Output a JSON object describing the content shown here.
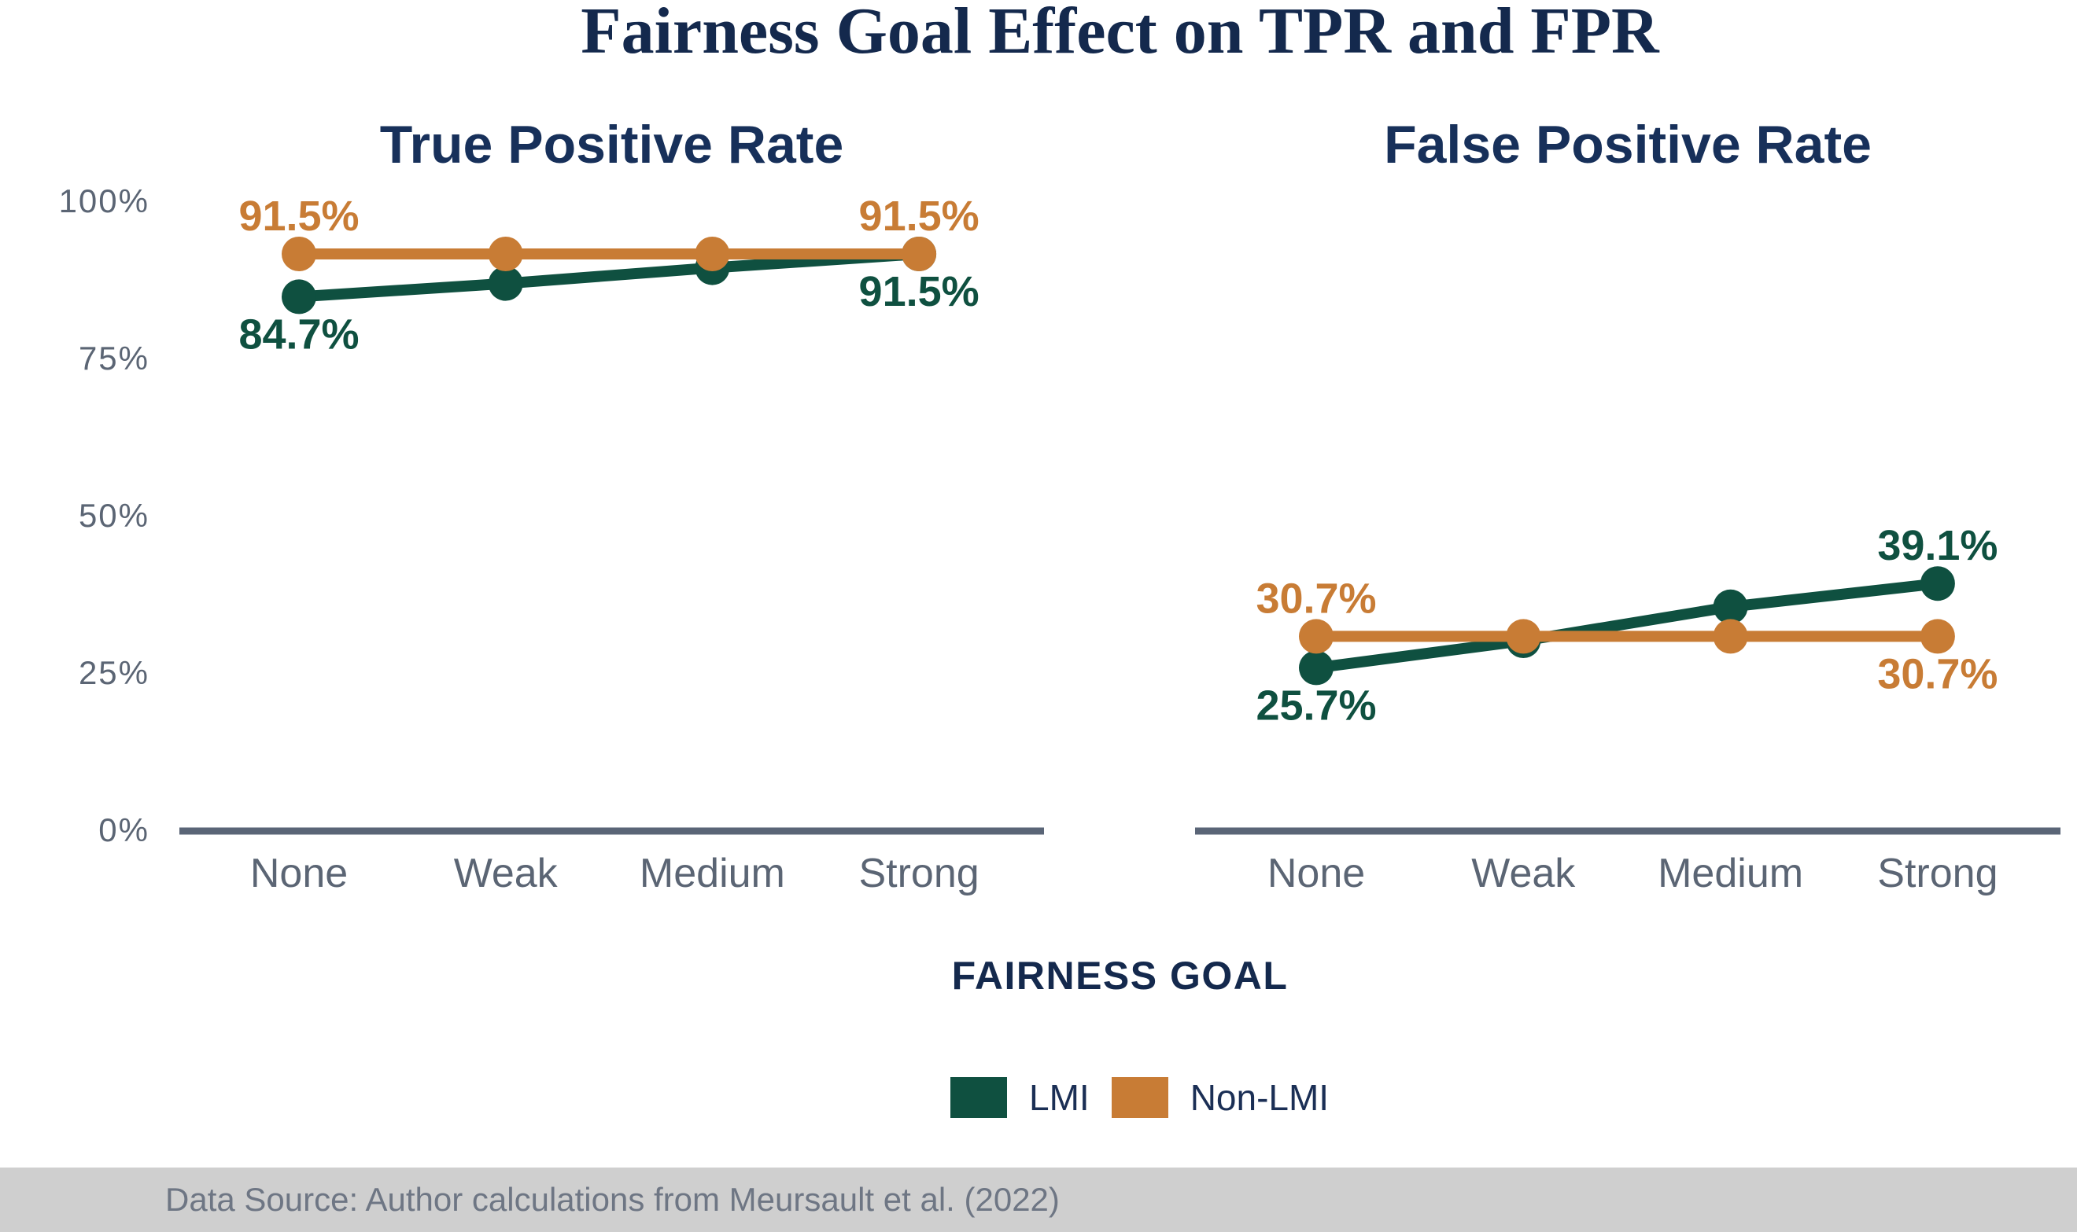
{
  "title": "Fairness Goal Effect on TPR and FPR",
  "x_axis_label": "FAIRNESS GOAL",
  "footer": {
    "text": "Data Source: Author calculations from Meursault et al. (2022)"
  },
  "legend": {
    "items": [
      {
        "label": "LMI",
        "color": "#0f5040"
      },
      {
        "label": "Non-LMI",
        "color": "#c87c35"
      }
    ]
  },
  "colors": {
    "navy": "#14294d",
    "slate_tick": "#5b6574",
    "axis_line": "#5a6577",
    "green": "#0f5040",
    "orange": "#c87c35"
  },
  "chart_data": [
    {
      "type": "line",
      "title": "True Positive Rate",
      "categories": [
        "None",
        "Weak",
        "Medium",
        "Strong"
      ],
      "ylim": [
        0,
        100
      ],
      "yticks": [
        "0%",
        "25%",
        "50%",
        "75%",
        "100%"
      ],
      "grid": false,
      "legend_position": "bottom",
      "series": [
        {
          "name": "LMI",
          "color": "#0f5040",
          "values": [
            84.7,
            86.8,
            89.3,
            91.5
          ],
          "point_labels": [
            {
              "index": 0,
              "text": "84.7%",
              "position": "below"
            },
            {
              "index": 3,
              "text": "91.5%",
              "position": "below"
            }
          ]
        },
        {
          "name": "Non-LMI",
          "color": "#c87c35",
          "values": [
            91.5,
            91.5,
            91.5,
            91.5
          ],
          "point_labels": [
            {
              "index": 0,
              "text": "91.5%",
              "position": "above"
            },
            {
              "index": 3,
              "text": "91.5%",
              "position": "above"
            }
          ]
        }
      ]
    },
    {
      "type": "line",
      "title": "False Positive Rate",
      "categories": [
        "None",
        "Weak",
        "Medium",
        "Strong"
      ],
      "ylim": [
        0,
        100
      ],
      "yticks": [],
      "grid": false,
      "legend_position": "bottom",
      "series": [
        {
          "name": "LMI",
          "color": "#0f5040",
          "values": [
            25.7,
            30.0,
            35.4,
            39.1
          ],
          "point_labels": [
            {
              "index": 0,
              "text": "25.7%",
              "position": "below"
            },
            {
              "index": 3,
              "text": "39.1%",
              "position": "above"
            }
          ]
        },
        {
          "name": "Non-LMI",
          "color": "#c87c35",
          "values": [
            30.7,
            30.7,
            30.7,
            30.7
          ],
          "point_labels": [
            {
              "index": 0,
              "text": "30.7%",
              "position": "above"
            },
            {
              "index": 3,
              "text": "30.7%",
              "position": "below"
            }
          ]
        }
      ]
    }
  ]
}
